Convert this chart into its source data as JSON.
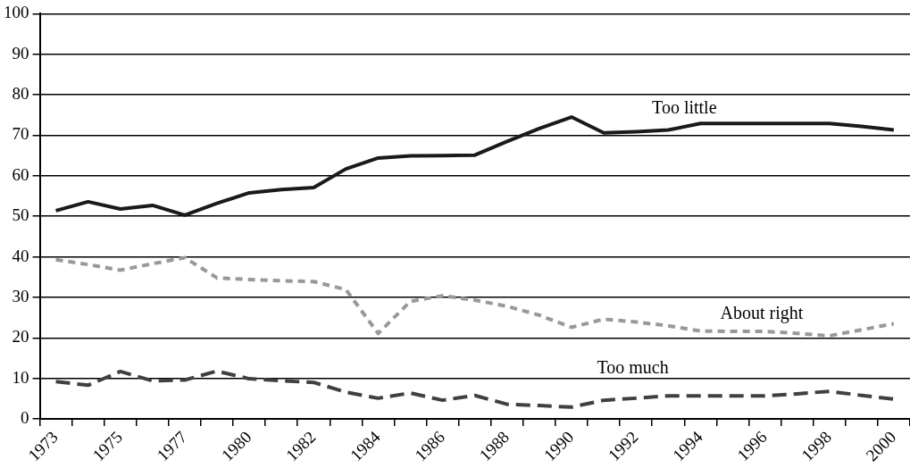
{
  "chart_data": {
    "type": "line",
    "categories": [
      "1973",
      null,
      "1975",
      null,
      "1977",
      null,
      "1980",
      null,
      "1982",
      null,
      "1984",
      null,
      "1986",
      null,
      "1988",
      null,
      "1990",
      null,
      "1992",
      null,
      "1994",
      null,
      "1996",
      null,
      "1998",
      null,
      "2000"
    ],
    "series": [
      {
        "name": "Too little",
        "color": "#1a1a1a",
        "line_style": "solid",
        "values": [
          51.4,
          53.6,
          51.8,
          52.7,
          50.3,
          53.2,
          55.8,
          56.6,
          57.1,
          61.7,
          64.4,
          64.9,
          65.0,
          65.1,
          68.5,
          71.7,
          74.5,
          70.6,
          70.9,
          71.3,
          72.9,
          72.9,
          72.9,
          72.9,
          72.9,
          72.2,
          71.3
        ]
      },
      {
        "name": "About right",
        "color": "#999999",
        "line_style": "dotted",
        "values": [
          39.3,
          38.1,
          36.7,
          38.3,
          39.8,
          34.8,
          34.4,
          34.1,
          33.9,
          31.9,
          21.1,
          29.0,
          30.4,
          29.3,
          27.8,
          25.6,
          22.6,
          24.6,
          23.9,
          23.0,
          21.7,
          21.6,
          21.6,
          21.1,
          20.5,
          22.0,
          23.5
        ]
      },
      {
        "name": "Too much",
        "color": "#404040",
        "line_style": "dashed",
        "values": [
          9.2,
          8.3,
          11.7,
          9.4,
          9.6,
          11.8,
          9.9,
          9.4,
          9.0,
          6.6,
          5.1,
          6.4,
          4.6,
          5.8,
          3.6,
          3.3,
          2.9,
          4.6,
          5.1,
          5.7,
          5.7,
          5.7,
          5.7,
          6.2,
          6.8,
          5.8,
          4.9
        ]
      }
    ],
    "ylim": [
      0,
      100
    ],
    "yticks": [
      0,
      10,
      20,
      30,
      40,
      50,
      60,
      70,
      80,
      90,
      100
    ],
    "grid": "y",
    "legend": false,
    "marker": "none"
  }
}
